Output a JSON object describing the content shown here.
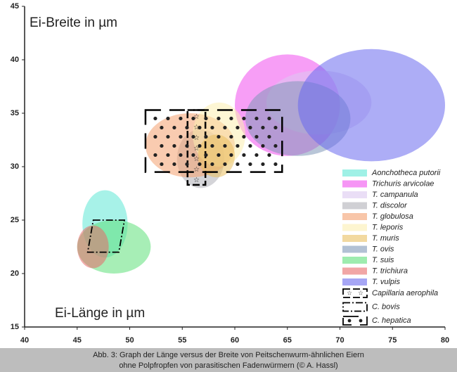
{
  "chart_data": {
    "type": "ellipse-range",
    "y_label": "Ei-Breite in µm",
    "x_label": "Ei-Länge in µm",
    "xlim": [
      40,
      80
    ],
    "ylim": [
      15,
      45
    ],
    "xticks": [
      40,
      45,
      50,
      55,
      60,
      65,
      70,
      75,
      80
    ],
    "yticks": [
      15,
      20,
      25,
      30,
      35,
      40,
      45
    ],
    "series": [
      {
        "name": "Aonchotheca putorii",
        "color": "#5fe8d6",
        "x": [
          45.5,
          49.8
        ],
        "y": [
          21.5,
          27.8
        ]
      },
      {
        "name": "Trichuris arvicolae",
        "color": "#f04fef",
        "x": [
          60,
          70
        ],
        "y": [
          31,
          40.5
        ]
      },
      {
        "name": "T. campanula",
        "color": "#dcc8f0",
        "x": [
          63,
          73
        ],
        "y": [
          33,
          39
        ]
      },
      {
        "name": "T. discolor",
        "color": "#b0b0b8",
        "x": [
          54.5,
          59
        ],
        "y": [
          28,
          33.5
        ]
      },
      {
        "name": "T. globulosa",
        "color": "#f4a070",
        "x": [
          51.5,
          60
        ],
        "y": [
          29,
          35
        ]
      },
      {
        "name": "T. leporis",
        "color": "#fbeeb0",
        "x": [
          56,
          61
        ],
        "y": [
          30,
          36
        ]
      },
      {
        "name": "T. muris",
        "color": "#e9c060",
        "x": [
          56.5,
          60
        ],
        "y": [
          29,
          33
        ]
      },
      {
        "name": "T. ovis",
        "color": "#7f98b8",
        "x": [
          61,
          71
        ],
        "y": [
          31,
          38
        ]
      },
      {
        "name": "T. suis",
        "color": "#5ee07a",
        "x": [
          45,
          52
        ],
        "y": [
          20,
          25
        ]
      },
      {
        "name": "T. trichiura",
        "color": "#e86a6a",
        "x": [
          45,
          48
        ],
        "y": [
          20.5,
          24.5
        ]
      },
      {
        "name": "T. vulpis",
        "color": "#6a6aee",
        "x": [
          66,
          80
        ],
        "y": [
          30.5,
          41
        ]
      }
    ],
    "boxes": [
      {
        "name": "Capillaria aerophila",
        "style": "stars",
        "x": [
          55.5,
          57.2
        ],
        "y": [
          28.3,
          35.3
        ]
      },
      {
        "name": "C. bovis",
        "style": "dashdot",
        "x": [
          46,
          49.5
        ],
        "y": [
          22,
          25
        ]
      },
      {
        "name": "C. hepatica",
        "style": "dots",
        "x": [
          51.5,
          64.5
        ],
        "y": [
          29.5,
          35.3
        ]
      }
    ]
  },
  "caption": [
    "Abb. 3: Graph der Länge versus der Breite von Peitschenwurm-ähnlichen Eiern",
    "ohne Polpfropfen von parasitischen Fadenwürmern (© A. Hassl)"
  ]
}
